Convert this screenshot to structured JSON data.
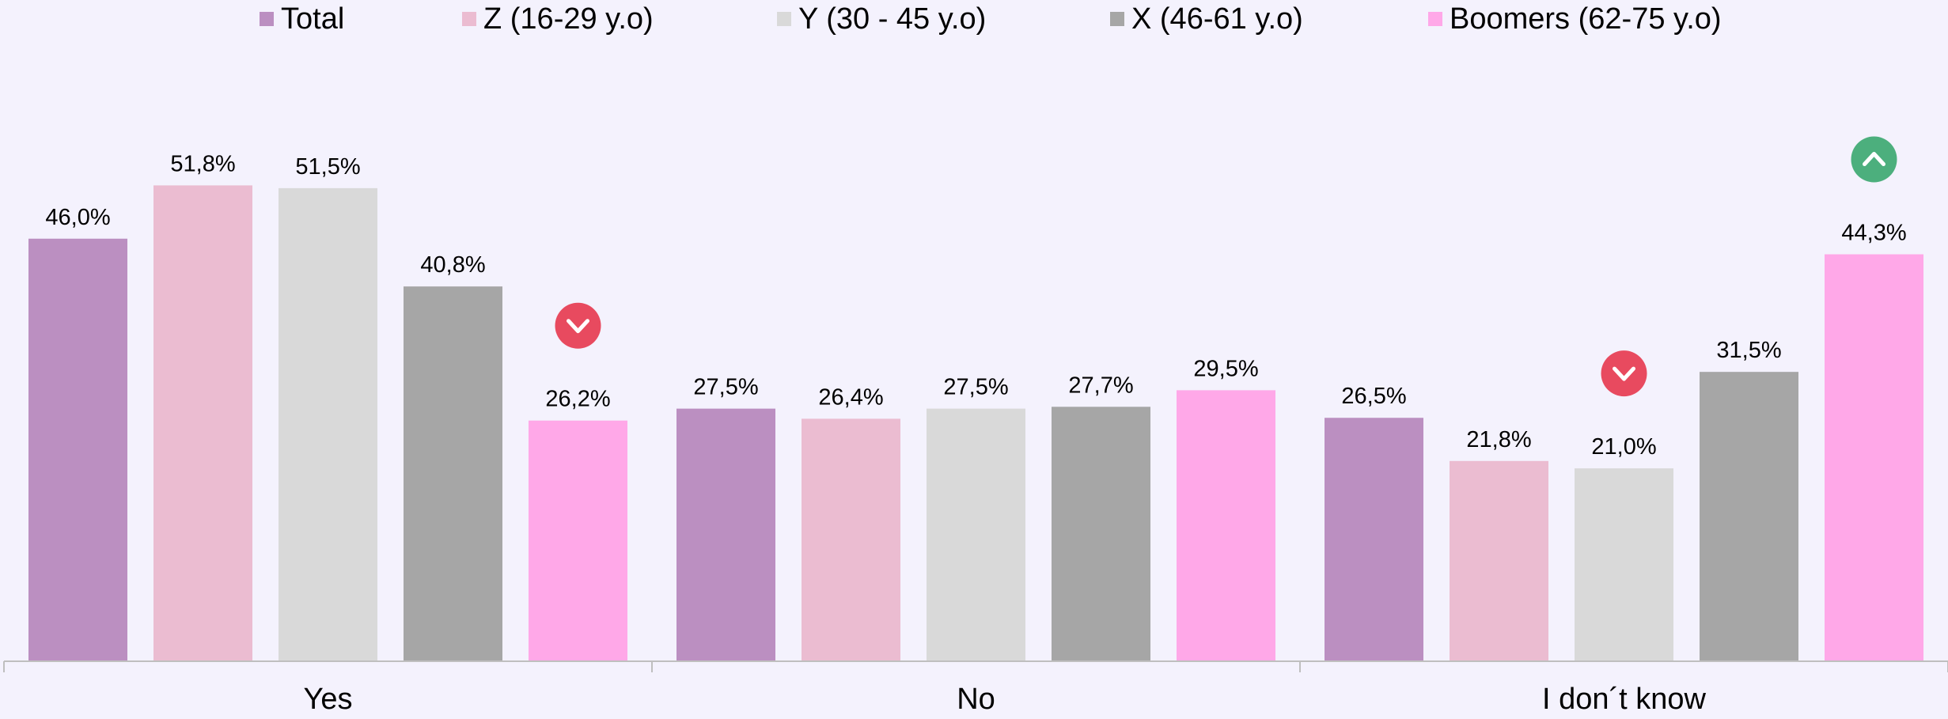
{
  "chart_data": {
    "type": "bar",
    "categories": [
      "Yes",
      "No",
      "I don´t know"
    ],
    "series": [
      {
        "name": "Total",
        "color": "#bb8fc1",
        "values": [
          46.0,
          27.5,
          26.5
        ],
        "labels": [
          "46,0%",
          "27,5%",
          "26,5%"
        ]
      },
      {
        "name": "Z (16-29 y.o)",
        "color": "#ebbcd1",
        "values": [
          51.8,
          26.4,
          21.8
        ],
        "labels": [
          "51,8%",
          "26,4%",
          "21,8%"
        ]
      },
      {
        "name": "Y (30 - 45 y.o)",
        "color": "#d9d9d9",
        "values": [
          51.5,
          27.5,
          21.0
        ],
        "labels": [
          "51,5%",
          "27,5%",
          "21,0%"
        ]
      },
      {
        "name": "X (46-61 y.o)",
        "color": "#a6a6a6",
        "values": [
          40.8,
          27.7,
          31.5
        ],
        "labels": [
          "40,8%",
          "27,7%",
          "31,5%"
        ]
      },
      {
        "name": "Boomers (62-75 y.o)",
        "color": "#ffa8e8",
        "values": [
          26.2,
          29.5,
          44.3
        ],
        "labels": [
          "26,2%",
          "29,5%",
          "44,3%"
        ]
      }
    ],
    "indicators": [
      {
        "category_index": 0,
        "series_index": 4,
        "direction": "down",
        "icon": "chevron-down-icon",
        "color": "#e84a5f"
      },
      {
        "category_index": 2,
        "series_index": 2,
        "direction": "down",
        "icon": "chevron-down-icon",
        "color": "#e84a5f"
      },
      {
        "category_index": 2,
        "series_index": 4,
        "direction": "up",
        "icon": "chevron-up-icon",
        "color": "#4caf7d"
      }
    ],
    "ylim": [
      0,
      60
    ],
    "grid": false,
    "legend_position": "top",
    "xlabel": "",
    "ylabel": ""
  }
}
